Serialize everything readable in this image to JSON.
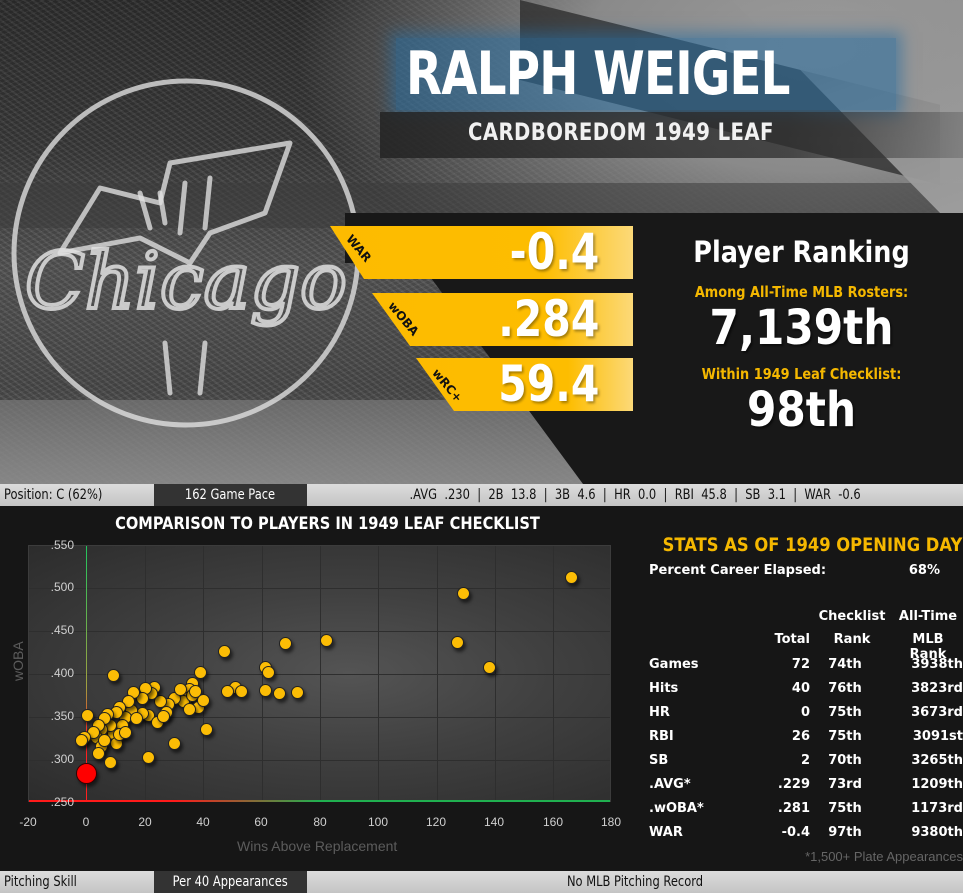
{
  "header": {
    "player_name": "RALPH WEIGEL",
    "subtitle": "CARDBOREDOM 1949 LEAF",
    "team_logo_text": "Chicago"
  },
  "headline_stats": [
    {
      "label": "WAR",
      "value": "-0.4"
    },
    {
      "label": "wOBA",
      "value": ".284"
    },
    {
      "label": "wRC+",
      "value": "59.4"
    }
  ],
  "ranking": {
    "title": "Player Ranking",
    "all_time_label": "Among All-Time MLB Rosters:",
    "all_time_value": "7,139th",
    "checklist_label": "Within 1949 Leaf Checklist:",
    "checklist_value": "98th"
  },
  "batting_bar": {
    "position": "Position: C (62%)",
    "mode": "162 Game Pace",
    "line": ".AVG  .230  |  2B  13.8  |  3B  4.6  |  HR  0.0  |  RBI  45.8  |  SB  3.1  |  WAR  -0.6"
  },
  "pitching_bar": {
    "label": "Pitching Skill",
    "mode": "Per 40 Appearances",
    "line": "No MLB Pitching Record"
  },
  "stats_table": {
    "title": "STATS AS OF 1949 OPENING DAY",
    "career_elapsed_label": "Percent Career Elapsed:",
    "career_elapsed_value": "68%",
    "headers": {
      "total": "Total",
      "checklist_top": "Checklist",
      "checklist_bottom": "Rank",
      "alltime_top": "All-Time",
      "alltime_bottom": "MLB Rank"
    },
    "rows": [
      {
        "stat": "Games",
        "total": "72",
        "checklist_rank": "74th",
        "mlb_rank": "3938th"
      },
      {
        "stat": "Hits",
        "total": "40",
        "checklist_rank": "76th",
        "mlb_rank": "3823rd"
      },
      {
        "stat": "HR",
        "total": "0",
        "checklist_rank": "75th",
        "mlb_rank": "3673rd"
      },
      {
        "stat": "RBI",
        "total": "26",
        "checklist_rank": "75th",
        "mlb_rank": "3091st"
      },
      {
        "stat": "SB",
        "total": "2",
        "checklist_rank": "70th",
        "mlb_rank": "3265th"
      },
      {
        "stat": ".AVG*",
        "total": ".229",
        "checklist_rank": "73rd",
        "mlb_rank": "1209th"
      },
      {
        "stat": ".wOBA*",
        "total": ".281",
        "checklist_rank": "75th",
        "mlb_rank": "1173rd"
      },
      {
        "stat": "WAR",
        "total": "-0.4",
        "checklist_rank": "97th",
        "mlb_rank": "9380th"
      }
    ],
    "footnote": "*1,500+ Plate Appearances"
  },
  "colors": {
    "accent_yellow": "#fdbb00",
    "rank_label": "#f5b800",
    "highlight_player": "#ff0000",
    "name_glow": "#286ea0"
  },
  "chart_data": {
    "type": "scatter",
    "title": "COMPARISON TO PLAYERS IN 1949 LEAF CHECKLIST",
    "xlabel": "Wins Above Replacement",
    "ylabel": "wOBA",
    "xlim": [
      -20,
      180
    ],
    "ylim": [
      0.25,
      0.55
    ],
    "x_ticks": [
      "-20",
      "0",
      "20",
      "40",
      "60",
      "80",
      "100",
      "120",
      "140",
      "160",
      "180"
    ],
    "y_ticks": [
      ".550",
      ".500",
      ".450",
      ".400",
      ".350",
      ".300",
      ".250"
    ],
    "grid": true,
    "highlight": {
      "name": "Ralph Weigel",
      "x": -0.4,
      "y": 0.284
    },
    "series": [
      {
        "name": "1949 Leaf Checklist",
        "points": [
          [
            166,
            0.513
          ],
          [
            129,
            0.494
          ],
          [
            127,
            0.437
          ],
          [
            138,
            0.408
          ],
          [
            82,
            0.44
          ],
          [
            68,
            0.436
          ],
          [
            47,
            0.427
          ],
          [
            61,
            0.408
          ],
          [
            62,
            0.402
          ],
          [
            61,
            0.381
          ],
          [
            72,
            0.379
          ],
          [
            66,
            0.378
          ],
          [
            51,
            0.385
          ],
          [
            53,
            0.38
          ],
          [
            48,
            0.38
          ],
          [
            39,
            0.402
          ],
          [
            36,
            0.39
          ],
          [
            35,
            0.382
          ],
          [
            34,
            0.372
          ],
          [
            33,
            0.368
          ],
          [
            36,
            0.376
          ],
          [
            38,
            0.362
          ],
          [
            41,
            0.336
          ],
          [
            35,
            0.359
          ],
          [
            30,
            0.372
          ],
          [
            28,
            0.365
          ],
          [
            25,
            0.369
          ],
          [
            23,
            0.385
          ],
          [
            22,
            0.378
          ],
          [
            20,
            0.384
          ],
          [
            19,
            0.372
          ],
          [
            27,
            0.356
          ],
          [
            21,
            0.352
          ],
          [
            24,
            0.344
          ],
          [
            19,
            0.354
          ],
          [
            30,
            0.32
          ],
          [
            16,
            0.379
          ],
          [
            15,
            0.358
          ],
          [
            14,
            0.369
          ],
          [
            13,
            0.35
          ],
          [
            12,
            0.341
          ],
          [
            11,
            0.362
          ],
          [
            10,
            0.356
          ],
          [
            9,
            0.331
          ],
          [
            10,
            0.32
          ],
          [
            8,
            0.34
          ],
          [
            7,
            0.353
          ],
          [
            6,
            0.349
          ],
          [
            5,
            0.336
          ],
          [
            4,
            0.34
          ],
          [
            3,
            0.327
          ],
          [
            2,
            0.332
          ],
          [
            0,
            0.352
          ],
          [
            -1,
            0.326
          ],
          [
            -2,
            0.323
          ],
          [
            5,
            0.316
          ],
          [
            6,
            0.323
          ],
          [
            4,
            0.308
          ],
          [
            8,
            0.297
          ],
          [
            9,
            0.399
          ],
          [
            11,
            0.33
          ],
          [
            13,
            0.332
          ],
          [
            17,
            0.349
          ],
          [
            21,
            0.303
          ],
          [
            26,
            0.351
          ],
          [
            32,
            0.383
          ],
          [
            37,
            0.38
          ],
          [
            40,
            0.37
          ]
        ]
      }
    ]
  }
}
